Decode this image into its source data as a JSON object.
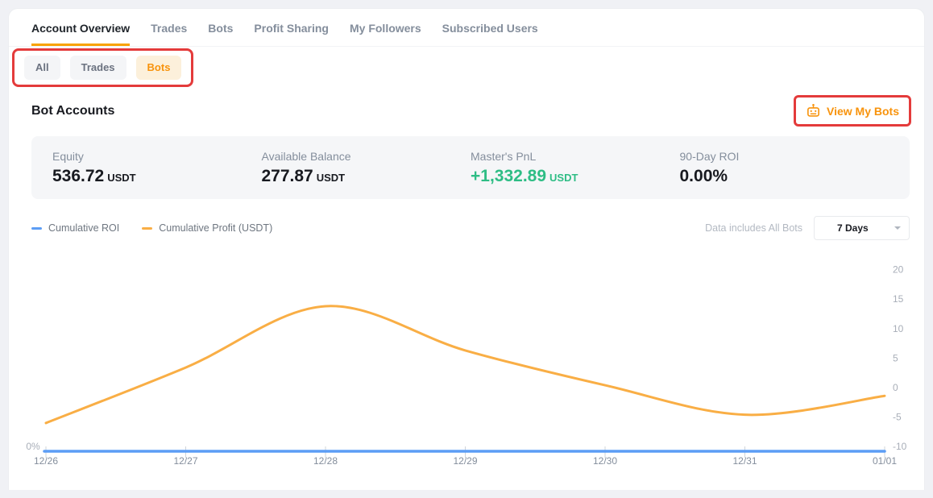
{
  "tabs": {
    "items": [
      {
        "label": "Account Overview",
        "active": true
      },
      {
        "label": "Trades",
        "active": false
      },
      {
        "label": "Bots",
        "active": false
      },
      {
        "label": "Profit Sharing",
        "active": false
      },
      {
        "label": "My Followers",
        "active": false
      },
      {
        "label": "Subscribed Users",
        "active": false
      }
    ]
  },
  "filters": {
    "items": [
      {
        "label": "All",
        "selected": false
      },
      {
        "label": "Trades",
        "selected": false
      },
      {
        "label": "Bots",
        "selected": true
      }
    ]
  },
  "section": {
    "title": "Bot Accounts",
    "view_bots_label": "View My Bots"
  },
  "stats": {
    "items": [
      {
        "label": "Equity",
        "value": "536.72",
        "unit": "USDT"
      },
      {
        "label": "Available Balance",
        "value": "277.87",
        "unit": "USDT"
      },
      {
        "label": "Master's PnL",
        "value": "+1,332.89",
        "unit": "USDT",
        "positive": true
      },
      {
        "label": "90-Day ROI",
        "value": "0.00%",
        "unit": ""
      }
    ]
  },
  "chart_header": {
    "legend": [
      {
        "label": "Cumulative ROI",
        "color": "#5C9DF5"
      },
      {
        "label": "Cumulative Profit (USDT)",
        "color": "#F9AE45"
      }
    ],
    "scope_note": "Data includes All Bots",
    "range_selector": {
      "value": "7 Days"
    }
  },
  "chart_data": {
    "type": "line",
    "title": "",
    "x": [
      "12/26",
      "12/27",
      "12/28",
      "12/29",
      "12/30",
      "12/31",
      "01/01"
    ],
    "series": [
      {
        "name": "Cumulative ROI",
        "axis": "left",
        "unit": "%",
        "color": "#5C9DF5",
        "values": [
          0,
          0,
          0,
          0,
          0,
          0,
          0
        ]
      },
      {
        "name": "Cumulative Profit (USDT)",
        "axis": "right",
        "unit": "USDT",
        "color": "#F9AE45",
        "values": [
          -6,
          3.4,
          13.8,
          6.3,
          0.4,
          -4.6,
          -1.4
        ]
      }
    ],
    "right_axis": {
      "ticks": [
        20,
        15,
        10,
        5,
        0,
        -5,
        -10
      ],
      "range": [
        -11,
        22
      ]
    },
    "left_axis": {
      "ticks": [
        "0%"
      ]
    },
    "grid": false,
    "legend_position": "top-left"
  },
  "colors": {
    "accent_orange": "#F8930C",
    "tab_underline": "#F8A200",
    "positive_green": "#2EBD85",
    "annotation_red": "#E43B3B",
    "roi_blue": "#5C9DF5",
    "profit_orange": "#F9AE45",
    "panel_bg": "#FFFFFF",
    "stats_bg": "#F5F6F8",
    "page_bg": "#F0F1F5"
  },
  "annotations": {
    "boxes": [
      "filter-pills",
      "view-my-bots-button"
    ]
  }
}
